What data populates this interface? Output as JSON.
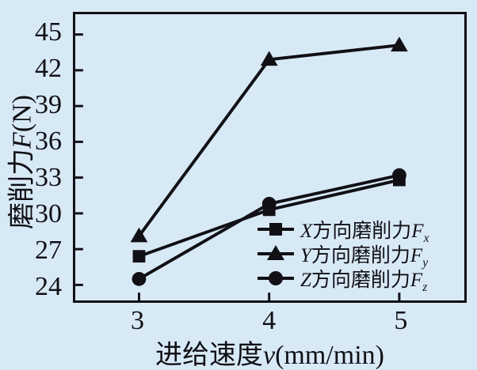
{
  "chart_data": {
    "type": "line",
    "x": [
      3,
      4,
      5
    ],
    "x_tick_labels": [
      "3",
      "4",
      "5"
    ],
    "y_ticks": [
      24,
      27,
      30,
      33,
      36,
      39,
      42,
      45
    ],
    "xlim": [
      2.51,
      5.5
    ],
    "ylim": [
      22.7,
      46.7
    ],
    "grid": false,
    "xlabel": "进给速度v(mm/min)",
    "ylabel": "磨削力F(N)",
    "xlabel_parts": {
      "prefix": "进给速度",
      "symbol": "v",
      "unit": "(mm/min)"
    },
    "ylabel_parts": {
      "prefix": "磨削力",
      "symbol": "F",
      "unit": "(N)"
    },
    "legend_position": "inside lower right",
    "series": [
      {
        "name": "X方向磨削力Fx",
        "marker": "square",
        "values": [
          26.4,
          30.3,
          32.8
        ],
        "label_parts": {
          "var": "X",
          "prefix": "方向磨削力",
          "symbol": "F",
          "sub": "x"
        }
      },
      {
        "name": "Y方向磨削力Fy",
        "marker": "triangle",
        "values": [
          28.1,
          42.9,
          44.1
        ],
        "label_parts": {
          "var": "Y",
          "prefix": "方向磨削力",
          "symbol": "F",
          "sub": "y"
        }
      },
      {
        "name": "Z方向磨削力Fz",
        "marker": "circle",
        "values": [
          24.5,
          30.8,
          33.2
        ],
        "label_parts": {
          "var": "Z",
          "prefix": "方向磨削力",
          "symbol": "F",
          "sub": "z"
        }
      }
    ],
    "colors": {
      "background": "#d8e9f6",
      "line": "#101015",
      "text": "#101015"
    },
    "style": {
      "line_width": 4,
      "tick_length": 10,
      "tick_width": 3
    }
  }
}
